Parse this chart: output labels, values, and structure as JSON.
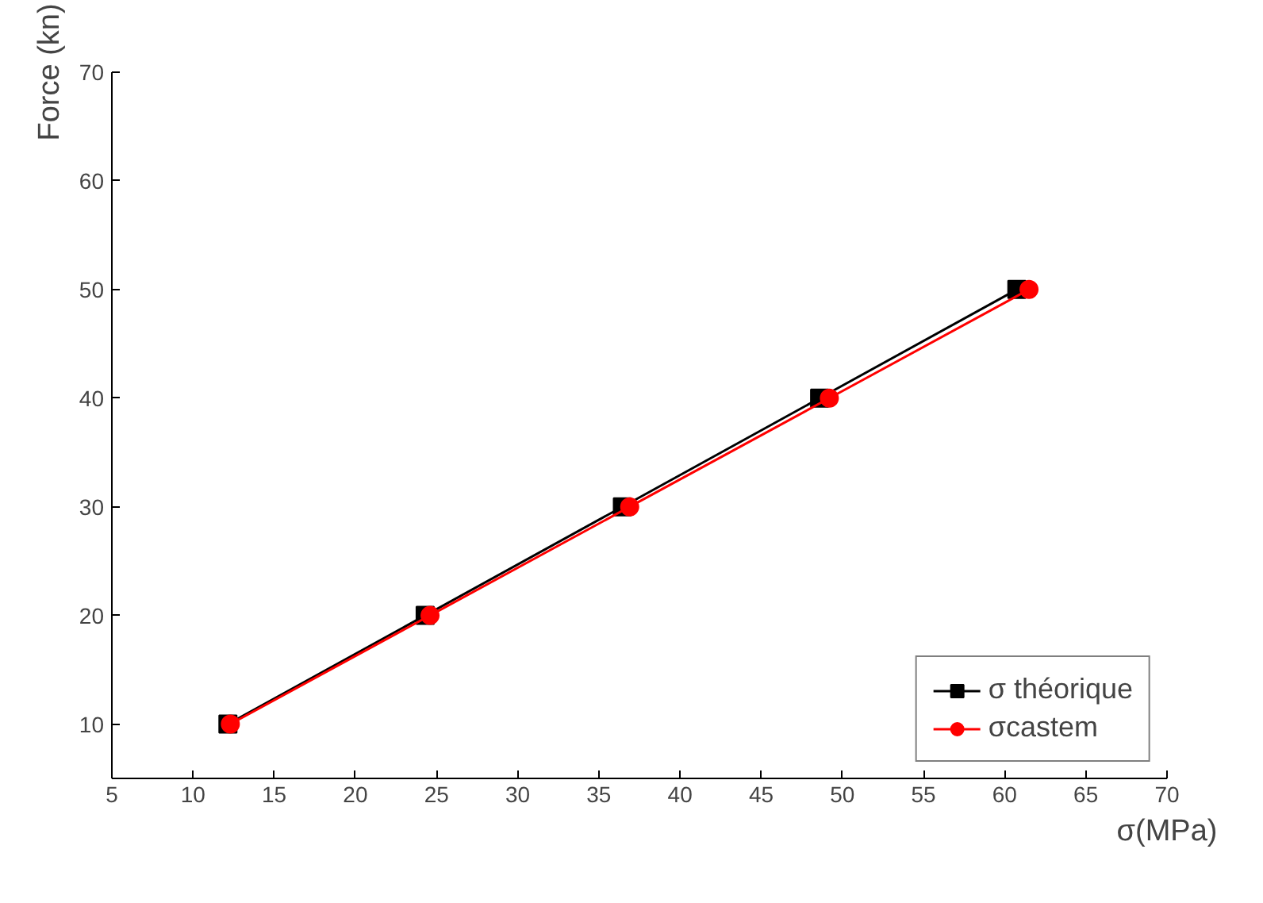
{
  "chart_data": {
    "type": "line",
    "xlabel": "σ(MPa)",
    "ylabel": "Force (kn)",
    "xlim": [
      5,
      70
    ],
    "xticks": [
      5,
      10,
      15,
      20,
      25,
      30,
      35,
      40,
      45,
      50,
      55,
      60,
      65,
      70
    ],
    "ylim": [
      5,
      70
    ],
    "yticks": [
      10,
      20,
      30,
      40,
      50,
      60,
      70
    ],
    "grid": false,
    "legend": "bottom right",
    "line_style": "solid",
    "series": [
      {
        "name": "σ théorique",
        "color": "#000000",
        "marker": "square",
        "x": [
          12.15,
          24.3,
          36.45,
          48.6,
          60.75
        ],
        "values": [
          10,
          20,
          30,
          40,
          50
        ]
      },
      {
        "name": "σcastem",
        "color": "#ff0000",
        "marker": "circle",
        "x": [
          12.3,
          24.6,
          36.9,
          49.2,
          61.5
        ],
        "values": [
          10,
          20,
          30,
          40,
          50
        ]
      }
    ]
  }
}
